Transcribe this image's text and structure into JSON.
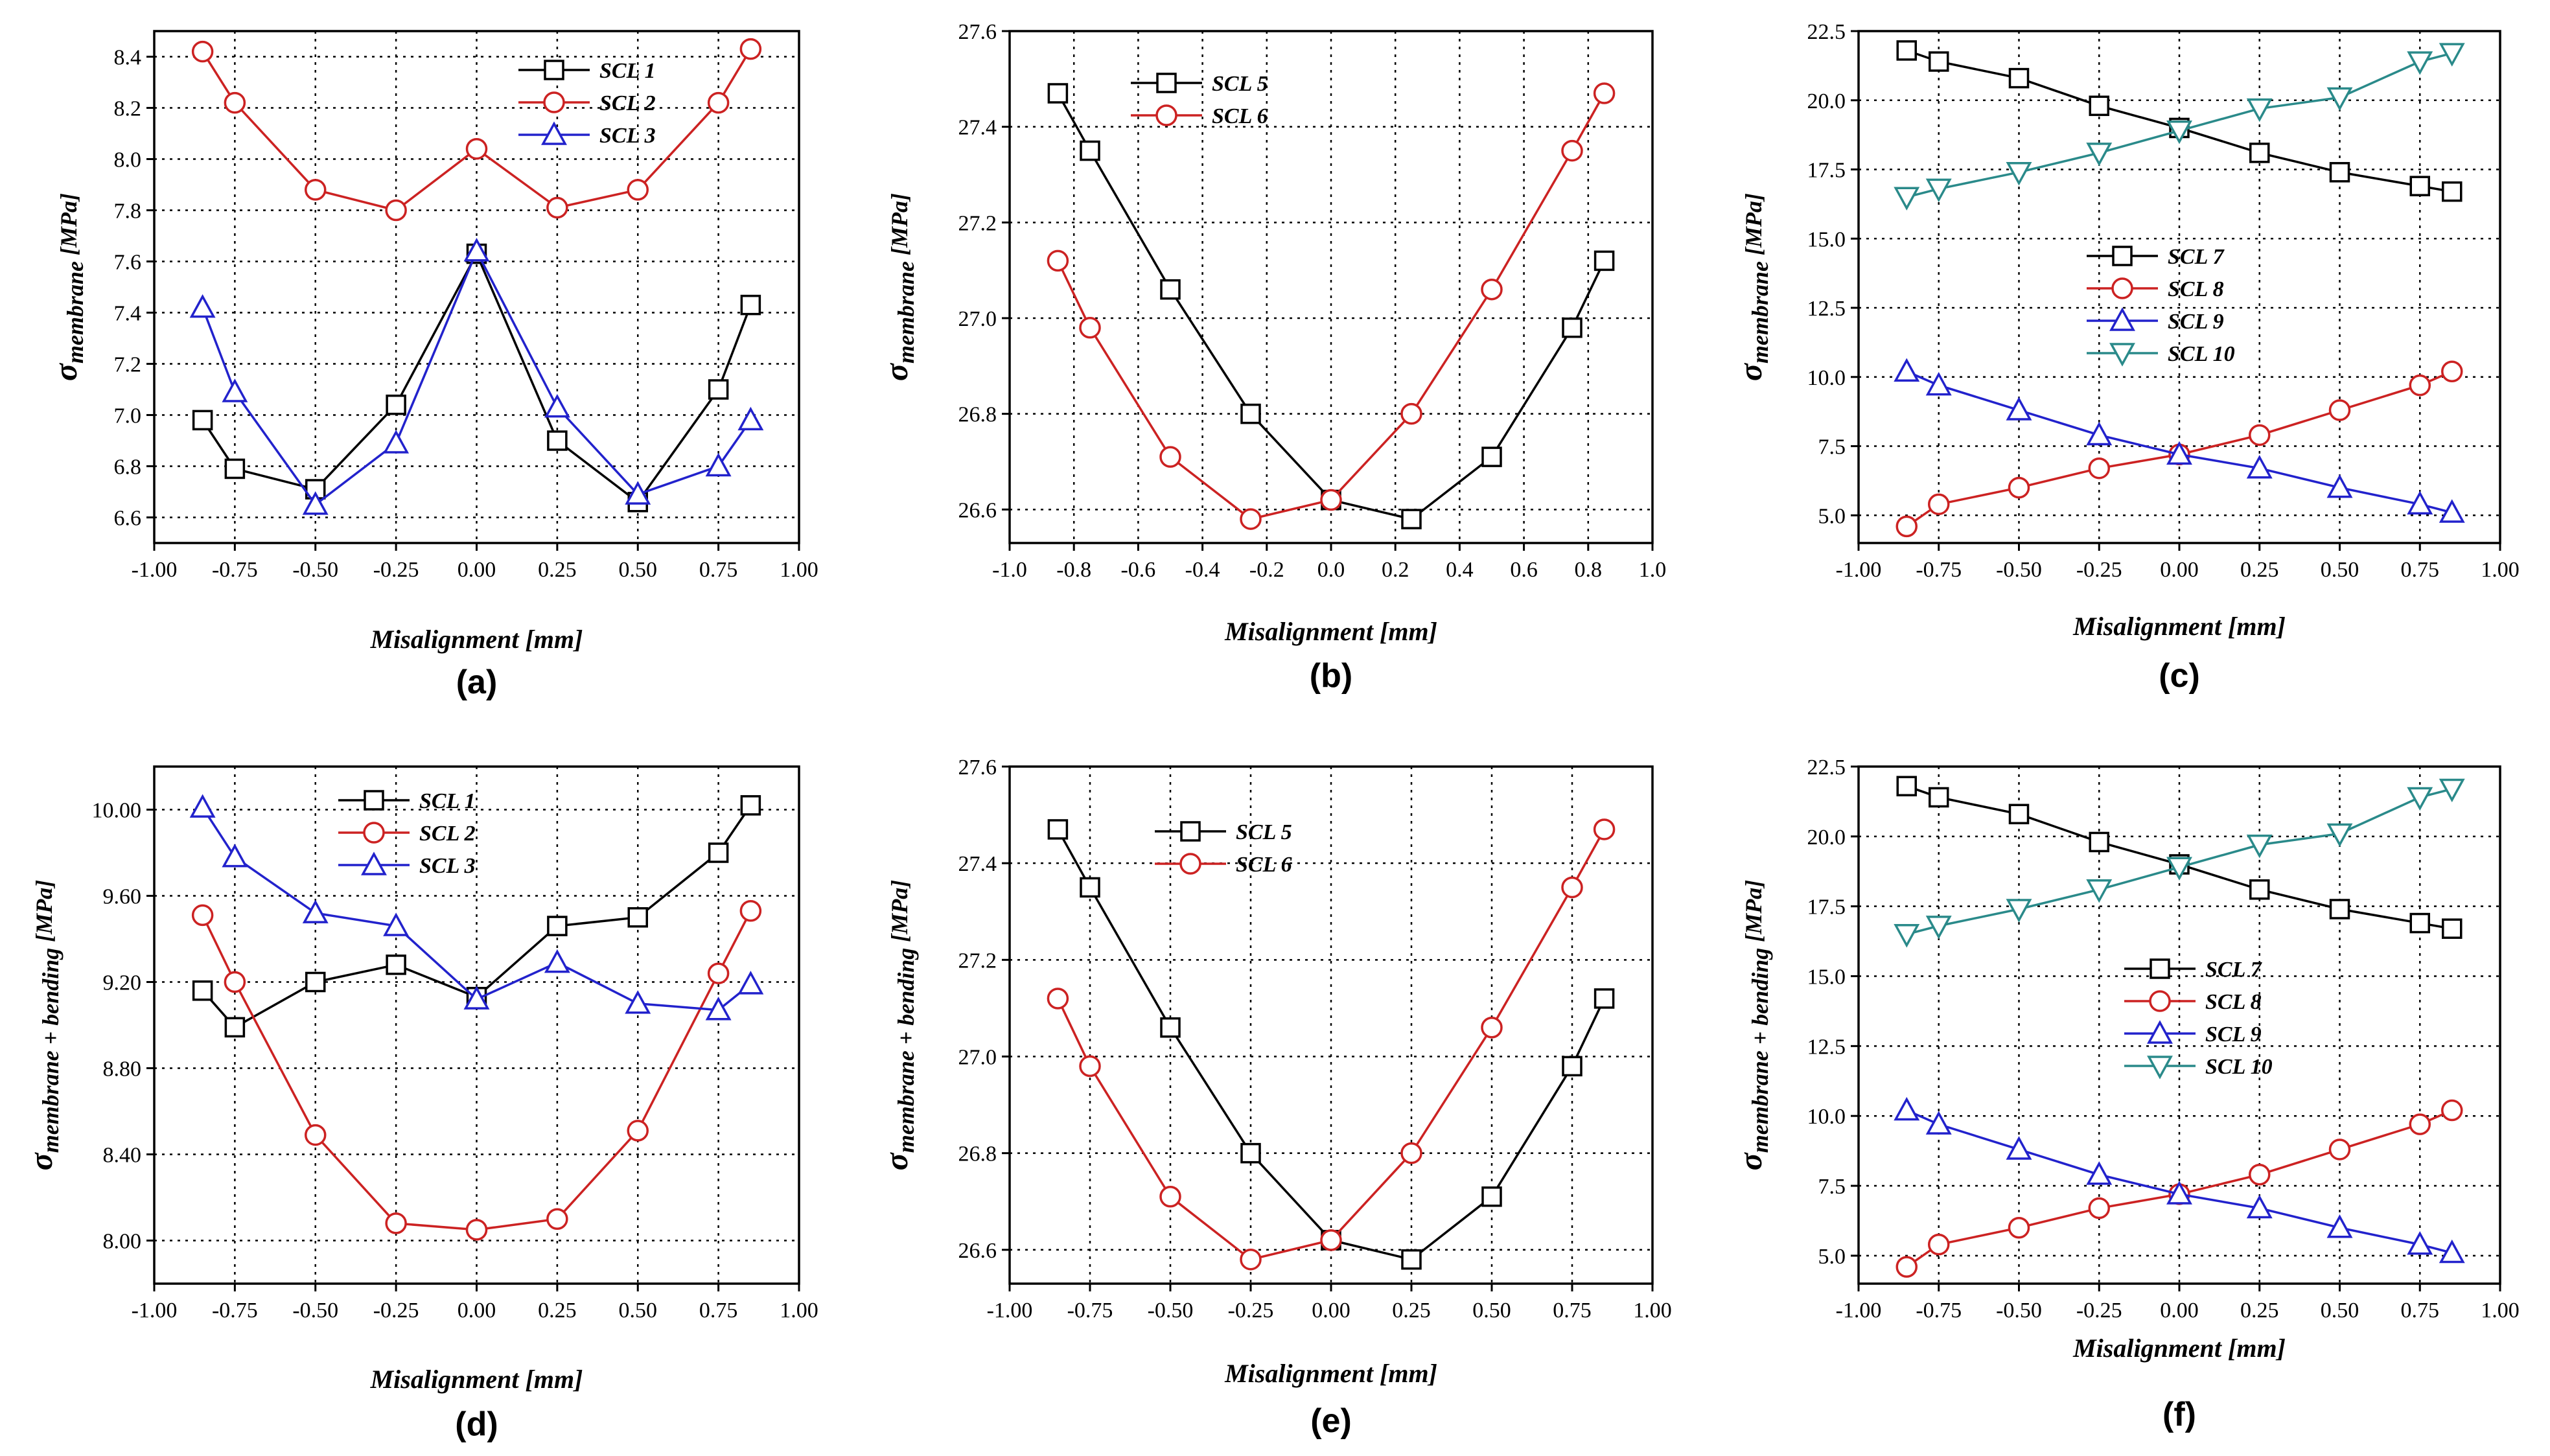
{
  "chart_data": [
    {
      "type": "line",
      "panel_label": "(a)",
      "ylabel_main": "σ",
      "ylabel_sub": "membrane",
      "ylabel_unit": " [MPa]",
      "xlabel": "Misalignment [mm]",
      "xlim": [
        -1.0,
        1.0
      ],
      "ylim": [
        6.5,
        8.5
      ],
      "xticks": [
        -1.0,
        -0.75,
        -0.5,
        -0.25,
        0.0,
        0.25,
        0.5,
        0.75,
        1.0
      ],
      "xtick_labels": [
        "-1.00",
        "-0.75",
        "-0.50",
        "-0.25",
        "0.00",
        "0.25",
        "0.50",
        "0.75",
        "1.00"
      ],
      "yticks": [
        6.6,
        6.8,
        7.0,
        7.2,
        7.4,
        7.6,
        7.8,
        8.0,
        8.2,
        8.4
      ],
      "ytick_labels": [
        "6.6",
        "6.8",
        "7.0",
        "7.2",
        "7.4",
        "7.6",
        "7.8",
        "8.0",
        "8.2",
        "8.4"
      ],
      "legend_position": "top-center",
      "x": [
        -0.85,
        -0.75,
        -0.5,
        -0.25,
        0.0,
        0.25,
        0.5,
        0.75,
        0.85
      ],
      "series": [
        {
          "name": "SCL 1",
          "color": "#000000",
          "marker": "square",
          "values": [
            6.98,
            6.79,
            6.71,
            7.04,
            7.63,
            6.9,
            6.66,
            7.1,
            7.43
          ]
        },
        {
          "name": "SCL 2",
          "color": "#cc2222",
          "marker": "circle",
          "values": [
            8.42,
            8.22,
            7.88,
            7.8,
            8.04,
            7.81,
            7.88,
            8.22,
            8.43
          ]
        },
        {
          "name": "SCL 3",
          "color": "#2222cc",
          "marker": "triangle-up",
          "values": [
            7.42,
            7.09,
            6.65,
            6.89,
            7.64,
            7.03,
            6.69,
            6.8,
            6.98
          ]
        }
      ]
    },
    {
      "type": "line",
      "panel_label": "(b)",
      "ylabel_main": "σ",
      "ylabel_sub": "membrane",
      "ylabel_unit": " [MPa]",
      "xlabel": "Misalignment [mm]",
      "xlim": [
        -1.0,
        1.0
      ],
      "ylim": [
        26.53,
        27.6
      ],
      "xticks": [
        -1.0,
        -0.8,
        -0.6,
        -0.4,
        -0.2,
        0.0,
        0.2,
        0.4,
        0.6,
        0.8,
        1.0
      ],
      "xtick_labels": [
        "-1.0",
        "-0.8",
        "-0.6",
        "-0.4",
        "-0.2",
        "0.0",
        "0.2",
        "0.4",
        "0.6",
        "0.8",
        "1.0"
      ],
      "yticks": [
        26.6,
        26.8,
        27.0,
        27.2,
        27.4,
        27.6
      ],
      "ytick_labels": [
        "26.6",
        "26.8",
        "27.0",
        "27.2",
        "27.4",
        "27.6"
      ],
      "legend_position": "top-left",
      "x": [
        -0.85,
        -0.75,
        -0.5,
        -0.25,
        0.0,
        0.25,
        0.5,
        0.75,
        0.85
      ],
      "series": [
        {
          "name": "SCL 5",
          "color": "#000000",
          "marker": "square",
          "values": [
            27.47,
            27.35,
            27.06,
            26.8,
            26.62,
            26.58,
            26.71,
            26.98,
            27.12
          ]
        },
        {
          "name": "SCL 6",
          "color": "#cc2222",
          "marker": "circle",
          "values": [
            27.12,
            26.98,
            26.71,
            26.58,
            26.62,
            26.8,
            27.06,
            27.35,
            27.47
          ]
        }
      ]
    },
    {
      "type": "line",
      "panel_label": "(c)",
      "ylabel_main": "σ",
      "ylabel_sub": "membrane",
      "ylabel_unit": " [MPa]",
      "xlabel": "Misalignment [mm]",
      "xlim": [
        -1.0,
        1.0
      ],
      "ylim": [
        4.0,
        22.5
      ],
      "xticks": [
        -1.0,
        -0.75,
        -0.5,
        -0.25,
        0.0,
        0.25,
        0.5,
        0.75,
        1.0
      ],
      "xtick_labels": [
        "-1.00",
        "-0.75",
        "-0.50",
        "-0.25",
        "0.00",
        "0.25",
        "0.50",
        "0.75",
        "1.00"
      ],
      "yticks": [
        5.0,
        7.5,
        10.0,
        12.5,
        15.0,
        17.5,
        20.0,
        22.5
      ],
      "ytick_labels": [
        "5.0",
        "7.5",
        "10.0",
        "12.5",
        "15.0",
        "17.5",
        "20.0",
        "22.5"
      ],
      "legend_position": "center-left",
      "x": [
        -0.85,
        -0.75,
        -0.5,
        -0.25,
        0.0,
        0.25,
        0.5,
        0.75,
        0.85
      ],
      "series": [
        {
          "name": "SCL 7",
          "color": "#000000",
          "marker": "square",
          "values": [
            21.8,
            21.4,
            20.8,
            19.8,
            19.0,
            18.1,
            17.4,
            16.9,
            16.7
          ]
        },
        {
          "name": "SCL 8",
          "color": "#cc2222",
          "marker": "circle",
          "values": [
            4.6,
            5.4,
            6.0,
            6.7,
            7.2,
            7.9,
            8.8,
            9.7,
            10.2
          ]
        },
        {
          "name": "SCL 9",
          "color": "#2222cc",
          "marker": "triangle-up",
          "values": [
            10.2,
            9.7,
            8.8,
            7.9,
            7.2,
            6.7,
            6.0,
            5.4,
            5.1
          ]
        },
        {
          "name": "SCL 10",
          "color": "#2a8a8a",
          "marker": "triangle-down",
          "values": [
            16.5,
            16.8,
            17.4,
            18.1,
            18.9,
            19.7,
            20.1,
            21.4,
            21.7
          ]
        }
      ]
    },
    {
      "type": "line",
      "panel_label": "(d)",
      "ylabel_main": "σ",
      "ylabel_sub": "membrane + bending",
      "ylabel_unit": " [MPa]",
      "xlabel": "Misalignment [mm]",
      "xlim": [
        -1.0,
        1.0
      ],
      "ylim": [
        7.8,
        10.2
      ],
      "xticks": [
        -1.0,
        -0.75,
        -0.5,
        -0.25,
        0.0,
        0.25,
        0.5,
        0.75,
        1.0
      ],
      "xtick_labels": [
        "-1.00",
        "-0.75",
        "-0.50",
        "-0.25",
        "0.00",
        "0.25",
        "0.50",
        "0.75",
        "1.00"
      ],
      "yticks": [
        8.0,
        8.4,
        8.8,
        9.2,
        9.6,
        10.0
      ],
      "ytick_labels": [
        "8.00",
        "8.40",
        "8.80",
        "9.20",
        "9.60",
        "10.00"
      ],
      "legend_position": "top-center",
      "x": [
        -0.85,
        -0.75,
        -0.5,
        -0.25,
        0.0,
        0.25,
        0.5,
        0.75,
        0.85
      ],
      "series": [
        {
          "name": "SCL 1",
          "color": "#000000",
          "marker": "square",
          "values": [
            9.16,
            8.99,
            9.2,
            9.28,
            9.13,
            9.46,
            9.5,
            9.8,
            10.02
          ]
        },
        {
          "name": "SCL 2",
          "color": "#cc2222",
          "marker": "circle",
          "values": [
            9.51,
            9.2,
            8.49,
            8.08,
            8.05,
            8.1,
            8.51,
            9.24,
            9.53
          ]
        },
        {
          "name": "SCL 3",
          "color": "#2222cc",
          "marker": "triangle-up",
          "values": [
            10.01,
            9.78,
            9.52,
            9.46,
            9.12,
            9.29,
            9.1,
            9.07,
            9.19
          ]
        }
      ]
    },
    {
      "type": "line",
      "panel_label": "(e)",
      "ylabel_main": "σ",
      "ylabel_sub": "membrane + bending",
      "ylabel_unit": " [MPa]",
      "xlabel": "Misalignment [mm]",
      "xlim": [
        -1.0,
        1.0
      ],
      "ylim": [
        26.53,
        27.6
      ],
      "xticks": [
        -1.0,
        -0.75,
        -0.5,
        -0.25,
        0.0,
        0.25,
        0.5,
        0.75,
        1.0
      ],
      "xtick_labels": [
        "-1.00",
        "-0.75",
        "-0.50",
        "-0.25",
        "0.00",
        "0.25",
        "0.50",
        "0.75",
        "1.00"
      ],
      "yticks": [
        26.6,
        26.8,
        27.0,
        27.2,
        27.4,
        27.6
      ],
      "ytick_labels": [
        "26.6",
        "26.8",
        "27.0",
        "27.2",
        "27.4",
        "27.6"
      ],
      "legend_position": "top-center",
      "x": [
        -0.85,
        -0.75,
        -0.5,
        -0.25,
        0.0,
        0.25,
        0.5,
        0.75,
        0.85
      ],
      "series": [
        {
          "name": "SCL 5",
          "color": "#000000",
          "marker": "square",
          "values": [
            27.47,
            27.35,
            27.06,
            26.8,
            26.62,
            26.58,
            26.71,
            26.98,
            27.12
          ]
        },
        {
          "name": "SCL 6",
          "color": "#cc2222",
          "marker": "circle",
          "values": [
            27.12,
            26.98,
            26.71,
            26.58,
            26.62,
            26.8,
            27.06,
            27.35,
            27.47
          ]
        }
      ]
    },
    {
      "type": "line",
      "panel_label": "(f)",
      "ylabel_main": "σ",
      "ylabel_sub": "membrane + bending",
      "ylabel_unit": " [MPa]",
      "xlabel": "Misalignment [mm]",
      "xlim": [
        -1.0,
        1.0
      ],
      "ylim": [
        4.0,
        22.5
      ],
      "xticks": [
        -1.0,
        -0.75,
        -0.5,
        -0.25,
        0.0,
        0.25,
        0.5,
        0.75,
        1.0
      ],
      "xtick_labels": [
        "-1.00",
        "-0.75",
        "-0.50",
        "-0.25",
        "0.00",
        "0.25",
        "0.50",
        "0.75",
        "1.00"
      ],
      "yticks": [
        5.0,
        7.5,
        10.0,
        12.5,
        15.0,
        17.5,
        20.0,
        22.5
      ],
      "ytick_labels": [
        "5.0",
        "7.5",
        "10.0",
        "12.5",
        "15.0",
        "17.5",
        "20.0",
        "22.5"
      ],
      "legend_position": "center",
      "x": [
        -0.85,
        -0.75,
        -0.5,
        -0.25,
        0.0,
        0.25,
        0.5,
        0.75,
        0.85
      ],
      "series": [
        {
          "name": "SCL 7",
          "color": "#000000",
          "marker": "square",
          "values": [
            21.8,
            21.4,
            20.8,
            19.8,
            19.0,
            18.1,
            17.4,
            16.9,
            16.7
          ]
        },
        {
          "name": "SCL 8",
          "color": "#cc2222",
          "marker": "circle",
          "values": [
            4.6,
            5.4,
            6.0,
            6.7,
            7.2,
            7.9,
            8.8,
            9.7,
            10.2
          ]
        },
        {
          "name": "SCL 9",
          "color": "#2222cc",
          "marker": "triangle-up",
          "values": [
            10.2,
            9.7,
            8.8,
            7.9,
            7.2,
            6.7,
            6.0,
            5.4,
            5.1
          ]
        },
        {
          "name": "SCL 10",
          "color": "#2a8a8a",
          "marker": "triangle-down",
          "values": [
            16.5,
            16.8,
            17.4,
            18.1,
            18.9,
            19.7,
            20.1,
            21.4,
            21.7
          ]
        }
      ]
    }
  ]
}
